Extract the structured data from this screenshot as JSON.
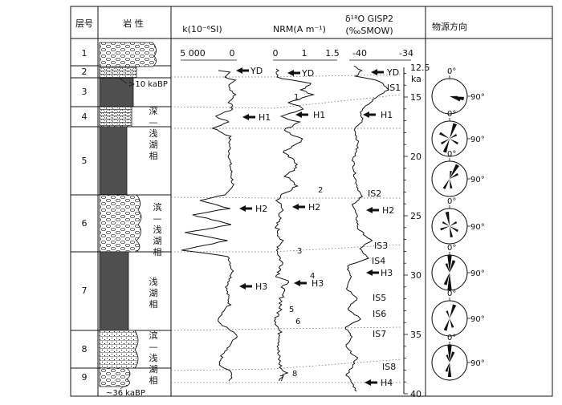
{
  "chart_data": {
    "type": "line",
    "headers": {
      "layer_no": "层号",
      "lithology": "岩 性",
      "k": "k(10⁻⁶SI)",
      "nrm": "NRM(A m⁻¹)",
      "d18o_line1": "δ¹⁸O GISP2",
      "d18o_line2": "(‰SMOW)",
      "source_direction": "物源方向"
    },
    "layers": [
      "1",
      "2",
      "3",
      "4",
      "5",
      "6",
      "7",
      "8",
      "9"
    ],
    "facies_labels": [
      {
        "layer": "4-5",
        "chars": [
          "深",
          "—",
          "浅",
          "湖",
          "相"
        ]
      },
      {
        "layer": "6",
        "chars": [
          "滨",
          "—",
          "浅",
          "湖",
          "相"
        ]
      },
      {
        "layer": "7",
        "chars": [
          "浅",
          "湖",
          "相"
        ]
      },
      {
        "layer": "8",
        "chars": [
          "滨",
          "—",
          "浅",
          "湖",
          "相"
        ]
      }
    ],
    "age_annotations": {
      "top": ">10 kaBP",
      "bottom": "~36 kaBP"
    },
    "k_axis": {
      "ticks": [
        "5 000",
        "0"
      ],
      "range": [
        5000,
        0
      ]
    },
    "nrm_axis": {
      "ticks": [
        "0",
        "1",
        "1.5"
      ],
      "range": [
        0,
        1.5
      ]
    },
    "d18o_axis": {
      "ticks": [
        "-40",
        "-34"
      ],
      "range": [
        -40,
        -34
      ]
    },
    "age_axis": {
      "unit": "ka",
      "range": [
        12.5,
        40
      ],
      "ticks": [
        "12.5",
        "15",
        "20",
        "25",
        "30",
        "35",
        "40"
      ]
    },
    "k_markers": [
      "YD",
      "H1",
      "H2",
      "H3"
    ],
    "nrm_markers": [
      "YD",
      "H1",
      "H2",
      "H3"
    ],
    "nrm_events": [
      "1",
      "2",
      "3",
      "4",
      "5",
      "6",
      "7",
      "8"
    ],
    "d18o_markers": [
      "YD",
      "IS1",
      "H1",
      "IS2",
      "H2",
      "IS3",
      "IS4",
      "H3",
      "IS5",
      "IS6",
      "IS7",
      "IS8",
      "H4"
    ],
    "rose_labels": {
      "north": "0°",
      "east": "90°"
    },
    "rose_count": 7,
    "colors": {
      "ink": "#111111",
      "guide": "#666666"
    }
  }
}
